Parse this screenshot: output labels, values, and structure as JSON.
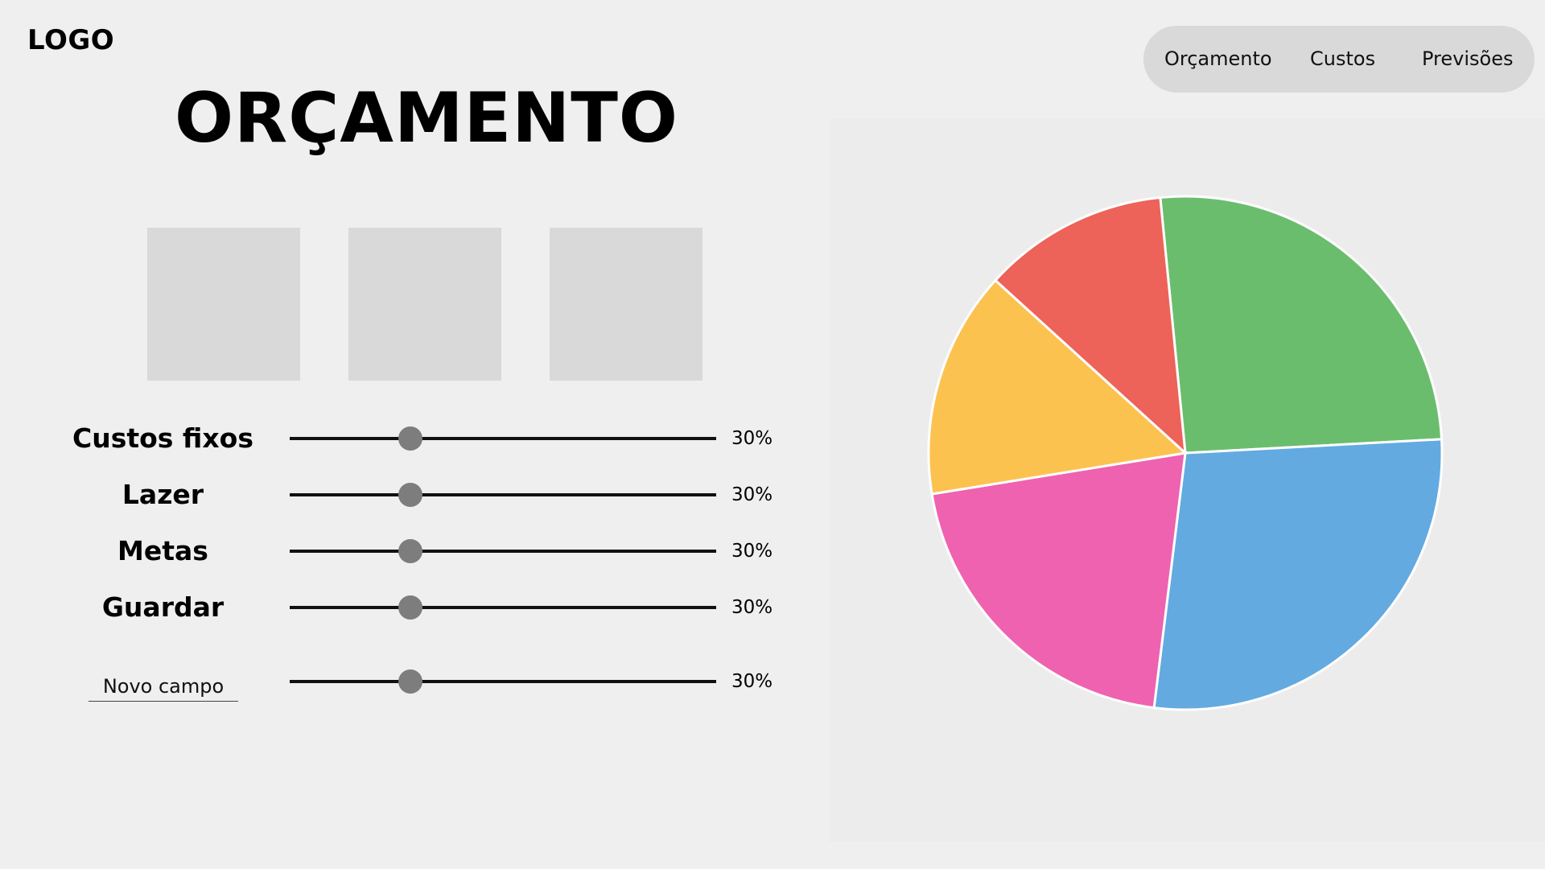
{
  "logo": "LOGO",
  "title": "ORÇAMENTO",
  "nav": {
    "items": [
      {
        "label": "Orçamento"
      },
      {
        "label": "Custos"
      },
      {
        "label": "Previsões"
      }
    ]
  },
  "sliders": [
    {
      "label": "Custos fixos",
      "value_text": "30%"
    },
    {
      "label": "Lazer",
      "value_text": "30%"
    },
    {
      "label": "Metas",
      "value_text": "30%"
    },
    {
      "label": "Guardar",
      "value_text": "30%"
    }
  ],
  "new_field": {
    "placeholder": "Novo campo",
    "value_text": "30%"
  },
  "colors": {
    "background": "#efefef",
    "card": "#d9d9d9",
    "slider_thumb": "#7d7d7d",
    "nav_background": "#d9d9d9"
  },
  "chart_data": {
    "type": "pie",
    "slices": [
      {
        "value": 25.7,
        "color": "#6bbd6e"
      },
      {
        "value": 27.8,
        "color": "#63aae0"
      },
      {
        "value": 20.5,
        "color": "#ee62b0"
      },
      {
        "value": 14.3,
        "color": "#fcc250"
      },
      {
        "value": 11.7,
        "color": "#ed6259"
      }
    ]
  }
}
